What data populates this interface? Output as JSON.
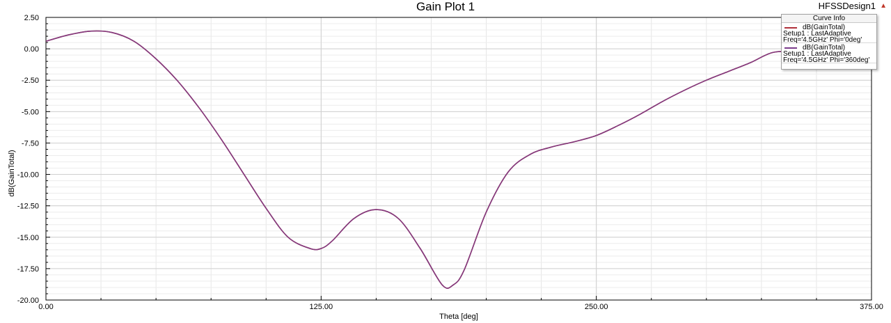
{
  "header": {
    "design_name": "HFSSDesign1",
    "marker": "▲"
  },
  "legend": {
    "title": "Curve Info",
    "entries": [
      {
        "trace": "dB(GainTotal)",
        "line2": "Setup1 : LastAdaptive",
        "line3": "Freq='4.5GHz' Phi='0deg'",
        "color": "#b0303a"
      },
      {
        "trace": "dB(GainTotal)",
        "line2": "Setup1 : LastAdaptive",
        "line3": "Freq='4.5GHz' Phi='360deg'",
        "color": "#7a3a8a"
      }
    ]
  },
  "chart_data": {
    "type": "line",
    "title": "Gain Plot 1",
    "xlabel": "Theta [deg]",
    "ylabel": "dB(GainTotal)",
    "xlim": [
      0,
      375
    ],
    "ylim": [
      -20,
      2.5
    ],
    "x_ticks": [
      "0.00",
      "125.00",
      "250.00",
      "375.00"
    ],
    "y_ticks": [
      "2.50",
      "0.00",
      "-2.50",
      "-5.00",
      "-7.50",
      "-10.00",
      "-12.50",
      "-15.00",
      "-17.50",
      "-20.00"
    ],
    "grid": true,
    "legend_position": "top-right",
    "x": [
      0,
      10,
      20,
      30,
      40,
      50,
      60,
      70,
      80,
      90,
      100,
      110,
      120,
      125,
      130,
      140,
      150,
      160,
      170,
      180,
      185,
      190,
      200,
      210,
      220,
      230,
      240,
      250,
      260,
      270,
      280,
      290,
      300,
      310,
      320,
      330,
      340,
      350,
      360
    ],
    "series": [
      {
        "name": "dB(GainTotal) Setup1 : LastAdaptive Freq='4.5GHz' Phi='0deg'",
        "y": [
          0.6,
          1.1,
          1.4,
          1.3,
          0.6,
          -0.8,
          -2.6,
          -4.8,
          -7.3,
          -10.0,
          -12.7,
          -15.0,
          -15.9,
          -15.9,
          -15.3,
          -13.5,
          -12.8,
          -13.5,
          -15.9,
          -18.8,
          -18.8,
          -17.6,
          -13.0,
          -9.8,
          -8.4,
          -7.8,
          -7.4,
          -6.9,
          -6.1,
          -5.2,
          -4.2,
          -3.3,
          -2.5,
          -1.8,
          -1.1,
          -0.3,
          -0.2,
          -0.1,
          0.0
        ],
        "color": "#b0303a"
      },
      {
        "name": "dB(GainTotal) Setup1 : LastAdaptive Freq='4.5GHz' Phi='360deg'",
        "y": [
          0.6,
          1.1,
          1.4,
          1.3,
          0.6,
          -0.8,
          -2.6,
          -4.8,
          -7.3,
          -10.0,
          -12.7,
          -15.0,
          -15.9,
          -15.9,
          -15.3,
          -13.5,
          -12.8,
          -13.5,
          -15.9,
          -18.8,
          -18.8,
          -17.6,
          -13.0,
          -9.8,
          -8.4,
          -7.8,
          -7.4,
          -6.9,
          -6.1,
          -5.2,
          -4.2,
          -3.3,
          -2.5,
          -1.8,
          -1.1,
          -0.3,
          -0.2,
          -0.1,
          0.0
        ],
        "color": "#7a3a8a"
      }
    ]
  }
}
